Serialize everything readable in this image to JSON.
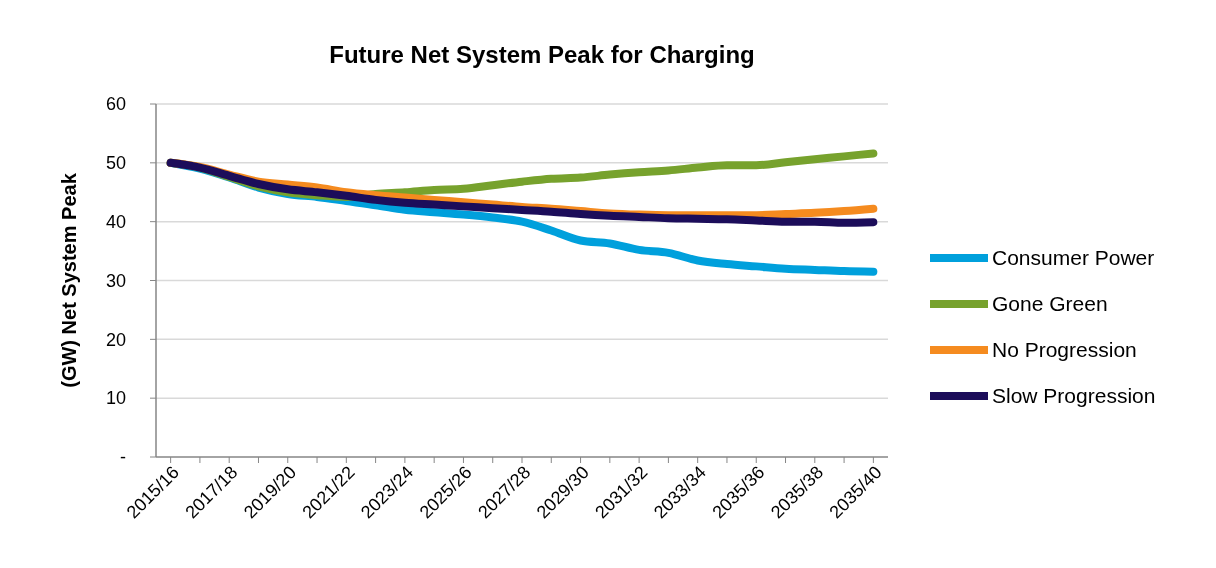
{
  "chart_data": {
    "type": "line",
    "title": "Future Net System Peak for Charging",
    "ylabel": "(GW) Net System Peak",
    "categories": [
      "2015/16",
      null,
      "2017/18",
      null,
      "2019/20",
      null,
      "2021/22",
      null,
      "2023/24",
      null,
      "2025/26",
      null,
      "2027/28",
      null,
      "2029/30",
      null,
      "2031/32",
      null,
      "2033/34",
      null,
      "2035/36",
      null,
      "2035/38",
      null,
      "2035/40"
    ],
    "series": [
      {
        "name": "Consumer Power",
        "color": "#00a0dc",
        "values": [
          50,
          49,
          47.5,
          45.8,
          44.7,
          44.2,
          43.5,
          42.8,
          42,
          41.6,
          41.2,
          40.7,
          40,
          38.5,
          36.8,
          36.3,
          35.2,
          34.7,
          33.4,
          32.8,
          32.4,
          32,
          31.8,
          31.6,
          31.5
        ]
      },
      {
        "name": "Gone Green",
        "color": "#77a22d",
        "values": [
          50,
          49.2,
          47.6,
          46,
          45,
          44.5,
          44.2,
          44.7,
          45,
          45.4,
          45.6,
          46.2,
          46.8,
          47.3,
          47.5,
          48,
          48.4,
          48.7,
          49.2,
          49.6,
          49.6,
          50.1,
          50.6,
          51.1,
          51.6
        ]
      },
      {
        "name": "No Progression",
        "color": "#f58b1f",
        "values": [
          50,
          49.3,
          48,
          46.8,
          46.3,
          45.8,
          45,
          44.5,
          44.1,
          43.7,
          43.3,
          42.9,
          42.5,
          42.2,
          41.8,
          41.4,
          41.2,
          41.1,
          41.1,
          41.1,
          41.1,
          41.3,
          41.5,
          41.8,
          42.2
        ]
      },
      {
        "name": "Slow Progression",
        "color": "#1c0d5a",
        "values": [
          50,
          49.2,
          47.8,
          46.4,
          45.5,
          45,
          44.4,
          43.7,
          43.2,
          42.9,
          42.6,
          42.3,
          42,
          41.7,
          41.3,
          41,
          40.8,
          40.6,
          40.5,
          40.4,
          40.2,
          40,
          40,
          39.8,
          39.9
        ]
      }
    ],
    "ylim": [
      0,
      60
    ],
    "yticks": [
      {
        "value": 0,
        "label": "-"
      },
      10,
      20,
      30,
      40,
      50,
      60
    ],
    "grid": "y",
    "legend": "right",
    "marker": "none",
    "line_style": "solid"
  }
}
